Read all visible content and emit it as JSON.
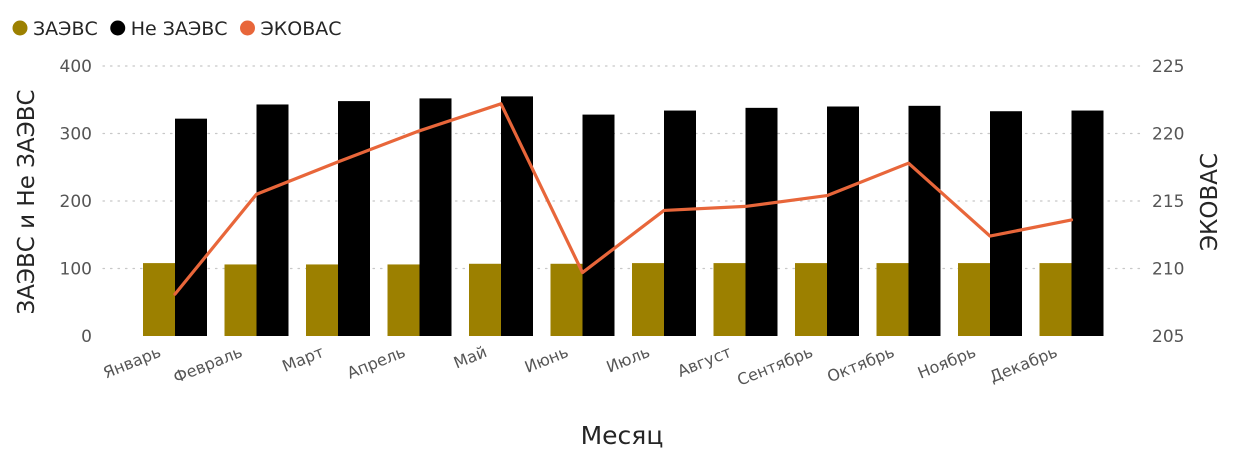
{
  "chart_data": {
    "type": "bar",
    "categories": [
      "Январь",
      "Февраль",
      "Март",
      "Апрель",
      "Май",
      "Июнь",
      "Июль",
      "Август",
      "Сентябрь",
      "Октябрь",
      "Ноябрь",
      "Декабрь"
    ],
    "series": [
      {
        "name": "ЗАЭВС",
        "type": "bar",
        "axis": "left",
        "color": "#9c8000",
        "values": [
          108,
          106,
          106,
          106,
          107,
          107,
          108,
          108,
          108,
          108,
          108,
          108
        ]
      },
      {
        "name": "Не ЗАЭВС",
        "type": "bar",
        "axis": "left",
        "color": "#000000",
        "values": [
          322,
          343,
          348,
          352,
          355,
          328,
          334,
          338,
          340,
          341,
          333,
          334
        ]
      },
      {
        "name": "ЭКОВАС",
        "type": "line",
        "axis": "right",
        "color": "#e8663a",
        "values": [
          208.1,
          215.5,
          217.9,
          220.2,
          222.2,
          209.7,
          214.3,
          214.6,
          215.4,
          217.8,
          212.4,
          213.6
        ]
      }
    ],
    "title": "",
    "xlabel": "Месяц",
    "ylabel_left": "ЗАЭВС и Не ЗАЭВС",
    "ylabel_right": "ЭКОВАС",
    "ylim_left": [
      0,
      400
    ],
    "yticks_left": [
      "0",
      "100",
      "200",
      "300",
      "400"
    ],
    "ylim_right": [
      205,
      225
    ],
    "yticks_right": [
      "205",
      "210",
      "215",
      "220",
      "225"
    ],
    "legend_position": "top-left",
    "grid": true
  }
}
